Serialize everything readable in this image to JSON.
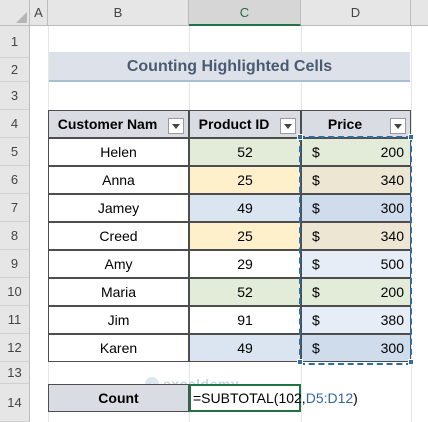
{
  "columns": [
    "A",
    "B",
    "C",
    "D"
  ],
  "rows": [
    "1",
    "2",
    "3",
    "4",
    "5",
    "6",
    "7",
    "8",
    "9",
    "10",
    "11",
    "12",
    "13",
    "14"
  ],
  "title": "Counting Highlighted Cells",
  "table": {
    "headers": {
      "customer": "Customer Nam",
      "product": "Product ID",
      "price": "Price"
    },
    "rows": [
      {
        "customer": "Helen",
        "product": "52",
        "currency": "$",
        "price": "200"
      },
      {
        "customer": "Anna",
        "product": "25",
        "currency": "$",
        "price": "340"
      },
      {
        "customer": "Jamey",
        "product": "49",
        "currency": "$",
        "price": "300"
      },
      {
        "customer": "Creed",
        "product": "25",
        "currency": "$",
        "price": "340"
      },
      {
        "customer": "Amy",
        "product": "29",
        "currency": "$",
        "price": "500"
      },
      {
        "customer": "Maria",
        "product": "52",
        "currency": "$",
        "price": "200"
      },
      {
        "customer": "Jim",
        "product": "91",
        "currency": "$",
        "price": "380"
      },
      {
        "customer": "Karen",
        "product": "49",
        "currency": "$",
        "price": "300"
      }
    ]
  },
  "colors": {
    "green": "#e3ecd9",
    "yellow": "#fff0cc",
    "blue": "#dbe5f1",
    "white": "#ffffff",
    "tan": "#ede6d2",
    "lightblue": "#e6edf7"
  },
  "count": {
    "label": "Count",
    "formula_prefix": "=SUBTOTAL(102,",
    "formula_ref": "D5:D12",
    "formula_suffix": ")"
  },
  "watermark": "exceldemy"
}
